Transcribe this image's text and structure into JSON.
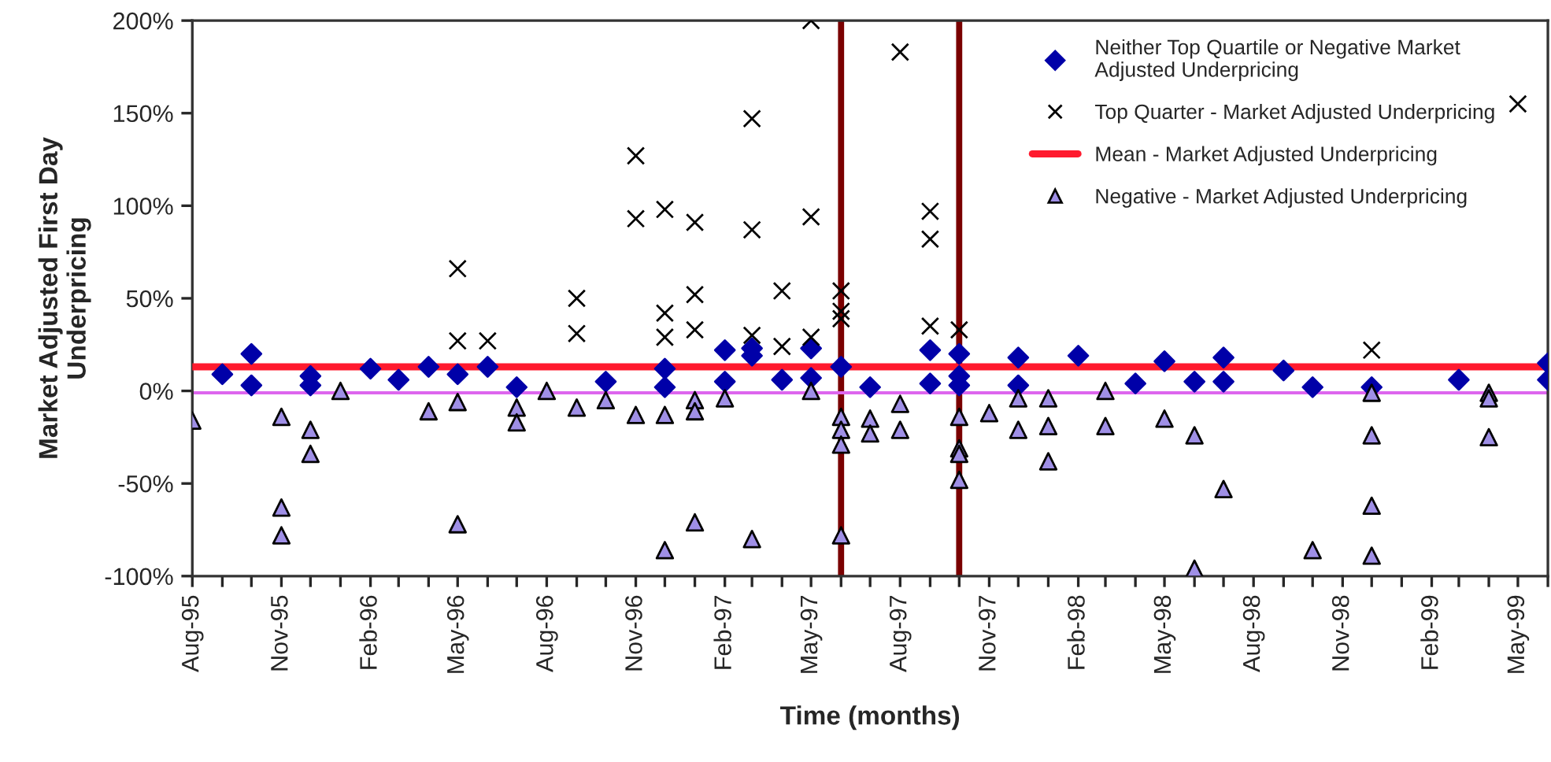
{
  "chart_data": {
    "type": "scatter",
    "xlabel": "Time (months)",
    "ylabel": "Market Adjusted First Day\nUnderpricing",
    "xlim": [
      "1995-08",
      "1999-06"
    ],
    "ylim": [
      -100,
      200
    ],
    "xticks": [
      {
        "value": "1995-08",
        "label": "Aug-95"
      },
      {
        "value": "1995-09",
        "label": null
      },
      {
        "value": "1995-10",
        "label": null
      },
      {
        "value": "1995-11",
        "label": "Nov-95"
      },
      {
        "value": "1995-12",
        "label": null
      },
      {
        "value": "1996-01",
        "label": null
      },
      {
        "value": "1996-02",
        "label": "Feb-96"
      },
      {
        "value": "1996-03",
        "label": null
      },
      {
        "value": "1996-04",
        "label": null
      },
      {
        "value": "1996-05",
        "label": "May-96"
      },
      {
        "value": "1996-06",
        "label": null
      },
      {
        "value": "1996-07",
        "label": null
      },
      {
        "value": "1996-08",
        "label": "Aug-96"
      },
      {
        "value": "1996-09",
        "label": null
      },
      {
        "value": "1996-10",
        "label": null
      },
      {
        "value": "1996-11",
        "label": "Nov-96"
      },
      {
        "value": "1996-12",
        "label": null
      },
      {
        "value": "1997-01",
        "label": null
      },
      {
        "value": "1997-02",
        "label": "Feb-97"
      },
      {
        "value": "1997-03",
        "label": null
      },
      {
        "value": "1997-04",
        "label": null
      },
      {
        "value": "1997-05",
        "label": "May-97"
      },
      {
        "value": "1997-06",
        "label": null
      },
      {
        "value": "1997-07",
        "label": null
      },
      {
        "value": "1997-08",
        "label": "Aug-97"
      },
      {
        "value": "1997-09",
        "label": null
      },
      {
        "value": "1997-10",
        "label": null
      },
      {
        "value": "1997-11",
        "label": "Nov-97"
      },
      {
        "value": "1997-12",
        "label": null
      },
      {
        "value": "1998-01",
        "label": null
      },
      {
        "value": "1998-02",
        "label": "Feb-98"
      },
      {
        "value": "1998-03",
        "label": null
      },
      {
        "value": "1998-04",
        "label": null
      },
      {
        "value": "1998-05",
        "label": "May-98"
      },
      {
        "value": "1998-06",
        "label": null
      },
      {
        "value": "1998-07",
        "label": null
      },
      {
        "value": "1998-08",
        "label": "Aug-98"
      },
      {
        "value": "1998-09",
        "label": null
      },
      {
        "value": "1998-10",
        "label": null
      },
      {
        "value": "1998-11",
        "label": "Nov-98"
      },
      {
        "value": "1998-12",
        "label": null
      },
      {
        "value": "1999-01",
        "label": null
      },
      {
        "value": "1999-02",
        "label": "Feb-99"
      },
      {
        "value": "1999-03",
        "label": null
      },
      {
        "value": "1999-04",
        "label": null
      },
      {
        "value": "1999-05",
        "label": "May-99"
      },
      {
        "value": "1999-06",
        "label": null
      }
    ],
    "yticks": [
      {
        "value": 200,
        "label": "200%"
      },
      {
        "value": 150,
        "label": "150%"
      },
      {
        "value": 100,
        "label": "100%"
      },
      {
        "value": 50,
        "label": "50%"
      },
      {
        "value": 0,
        "label": "0%"
      },
      {
        "value": -50,
        "label": "-50%"
      },
      {
        "value": -100,
        "label": "-100%"
      }
    ],
    "legend": "top right",
    "series": [
      {
        "name": "Neither Top Quartile or Negative Market\nAdjusted Underpricing",
        "marker": "diamond",
        "color": "#0000a8",
        "x": [
          "1995-09",
          "1995-10",
          "1995-10",
          "1995-12",
          "1995-12",
          "1996-02",
          "1996-03",
          "1996-04",
          "1996-05",
          "1996-06",
          "1996-07",
          "1996-10",
          "1996-12",
          "1996-12",
          "1997-02",
          "1997-02",
          "1997-03",
          "1997-03",
          "1997-04",
          "1997-05",
          "1997-05",
          "1997-06",
          "1997-07",
          "1997-09",
          "1997-09",
          "1997-10",
          "1997-10",
          "1997-10",
          "1997-12",
          "1997-12",
          "1998-02",
          "1998-04",
          "1998-05",
          "1998-06",
          "1998-07",
          "1998-07",
          "1998-09",
          "1998-10",
          "1998-12",
          "1999-03",
          "1999-06",
          "1999-06"
        ],
        "values": [
          9,
          20,
          3,
          8,
          3,
          12,
          6,
          13,
          9,
          13,
          2,
          5,
          12,
          2,
          22,
          5,
          23,
          19,
          6,
          23,
          7,
          13,
          2,
          22,
          4,
          20,
          8,
          3,
          18,
          3,
          19,
          4,
          16,
          5,
          18,
          5,
          11,
          2,
          2,
          6,
          15,
          6
        ]
      },
      {
        "name": "Top Quarter - Market Adjusted Underpricing",
        "marker": "cross",
        "color": "#000000",
        "x": [
          "1996-05",
          "1996-05",
          "1996-06",
          "1996-09",
          "1996-09",
          "1996-11",
          "1996-11",
          "1996-12",
          "1996-12",
          "1996-12",
          "1997-01",
          "1997-01",
          "1997-01",
          "1997-03",
          "1997-03",
          "1997-03",
          "1997-04",
          "1997-04",
          "1997-05",
          "1997-05",
          "1997-05",
          "1997-06",
          "1997-06",
          "1997-06",
          "1997-08",
          "1997-09",
          "1997-09",
          "1997-09",
          "1997-10",
          "1998-12",
          "1999-05"
        ],
        "values": [
          66,
          27,
          27,
          50,
          31,
          127,
          93,
          98,
          42,
          29,
          91,
          52,
          33,
          147,
          87,
          30,
          54,
          24,
          200,
          94,
          29,
          54,
          43,
          39,
          183,
          97,
          82,
          35,
          33,
          22,
          155
        ]
      },
      {
        "name": "Mean - Market Adjusted Underpricing",
        "type": "line",
        "color": "#ff1a2e",
        "x": [
          "1995-08",
          "1999-06"
        ],
        "values": [
          13,
          13
        ]
      },
      {
        "name": "Negative - Market Adjusted Underpricing",
        "marker": "triangle",
        "color": "#9f8fe6",
        "x": [
          "1995-08",
          "1995-11",
          "1995-11",
          "1995-11",
          "1995-12",
          "1995-12",
          "1996-01",
          "1996-04",
          "1996-05",
          "1996-05",
          "1996-07",
          "1996-07",
          "1996-08",
          "1996-09",
          "1996-10",
          "1996-11",
          "1996-12",
          "1996-12",
          "1997-01",
          "1997-01",
          "1997-01",
          "1997-02",
          "1997-03",
          "1997-05",
          "1997-06",
          "1997-06",
          "1997-06",
          "1997-06",
          "1997-07",
          "1997-07",
          "1997-08",
          "1997-08",
          "1997-10",
          "1997-10",
          "1997-10",
          "1997-10",
          "1997-11",
          "1997-12",
          "1997-12",
          "1998-01",
          "1998-01",
          "1998-01",
          "1998-03",
          "1998-03",
          "1998-05",
          "1998-06",
          "1998-06",
          "1998-07",
          "1998-10",
          "1998-12",
          "1998-12",
          "1998-12",
          "1998-12",
          "1999-04",
          "1999-04",
          "1999-04"
        ],
        "values": [
          -16,
          -14,
          -63,
          -78,
          -21,
          -34,
          0,
          -11,
          -6,
          -72,
          -9,
          -17,
          0,
          -9,
          -5,
          -13,
          -13,
          -86,
          -5,
          -11,
          -71,
          -4,
          -80,
          0,
          -14,
          -21,
          -29,
          -78,
          -15,
          -23,
          -7,
          -21,
          -14,
          -31,
          -34,
          -48,
          -12,
          -4,
          -21,
          -4,
          -19,
          -38,
          0,
          -19,
          -15,
          -24,
          -96,
          -53,
          -86,
          -1,
          -24,
          -62,
          -89,
          -1,
          -4,
          -25
        ]
      }
    ],
    "ref_lines": [
      {
        "axis": "x",
        "value": "1997-06",
        "color": "#7a0000"
      },
      {
        "axis": "x",
        "value": "1997-10",
        "color": "#7a0000"
      },
      {
        "axis": "y",
        "value": -1,
        "color": "#dd66ee"
      }
    ]
  }
}
